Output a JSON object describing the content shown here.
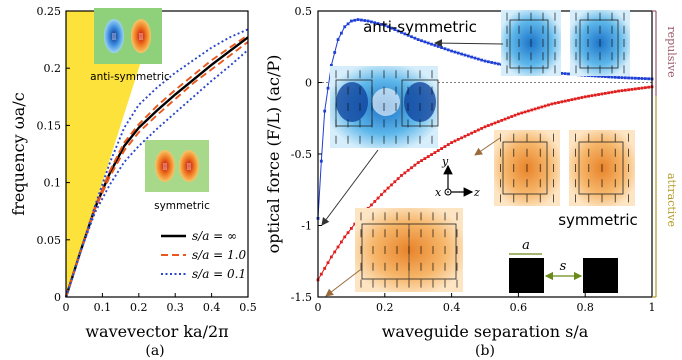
{
  "chart_data": [
    {
      "panel": "(a)",
      "type": "line",
      "xlabel": "wavevector ka/2π",
      "ylabel": "frequency ωa/c",
      "xlim": [
        0,
        0.5
      ],
      "ylim": [
        0,
        0.25
      ],
      "xticks": [
        "0",
        "0.1",
        "0.2",
        "0.3",
        "0.4",
        "0.5"
      ],
      "yticks": [
        "0",
        "0.05",
        "0.1",
        "0.15",
        "0.2",
        "0.25"
      ],
      "light_cone_color": "#fde23b",
      "legend_position": "bottom-right",
      "series": [
        {
          "name": "s/a = ∞",
          "style": "solid",
          "color": "#000000",
          "branch": "single",
          "x": [
            0.04,
            0.08,
            0.12,
            0.16,
            0.2,
            0.25,
            0.3,
            0.35,
            0.4,
            0.45,
            0.5
          ],
          "y": [
            0.04,
            0.078,
            0.108,
            0.132,
            0.148,
            0.163,
            0.177,
            0.19,
            0.203,
            0.215,
            0.227
          ]
        },
        {
          "name": "s/a = 1.0",
          "style": "dashed",
          "color": "#e8581e",
          "branch": "upper",
          "x": [
            0.04,
            0.08,
            0.12,
            0.16,
            0.2,
            0.25,
            0.3,
            0.35,
            0.4,
            0.45,
            0.5
          ],
          "y": [
            0.04,
            0.079,
            0.11,
            0.135,
            0.151,
            0.167,
            0.181,
            0.194,
            0.207,
            0.218,
            0.229
          ]
        },
        {
          "name": "s/a = 1.0",
          "style": "dashed",
          "color": "#e8581e",
          "branch": "lower",
          "x": [
            0.04,
            0.08,
            0.12,
            0.16,
            0.2,
            0.25,
            0.3,
            0.35,
            0.4,
            0.45,
            0.5
          ],
          "y": [
            0.04,
            0.077,
            0.105,
            0.128,
            0.144,
            0.159,
            0.173,
            0.187,
            0.199,
            0.211,
            0.223
          ]
        },
        {
          "name": "s/a = 0.1",
          "style": "dotted",
          "color": "#2a47c9",
          "branch": "upper",
          "x": [
            0.04,
            0.08,
            0.12,
            0.16,
            0.2,
            0.25,
            0.3,
            0.35,
            0.4,
            0.45,
            0.5
          ],
          "y": [
            0.04,
            0.08,
            0.117,
            0.148,
            0.168,
            0.183,
            0.196,
            0.207,
            0.218,
            0.227,
            0.234
          ]
        },
        {
          "name": "s/a = 0.1",
          "style": "dotted",
          "color": "#2a47c9",
          "branch": "lower",
          "x": [
            0.04,
            0.08,
            0.12,
            0.16,
            0.2,
            0.25,
            0.3,
            0.35,
            0.4,
            0.45,
            0.5
          ],
          "y": [
            0.04,
            0.074,
            0.098,
            0.118,
            0.132,
            0.147,
            0.161,
            0.175,
            0.189,
            0.202,
            0.216
          ]
        }
      ],
      "annotations": [
        "anti-symmetric",
        "symmetric"
      ]
    },
    {
      "panel": "(b)",
      "type": "scatter",
      "xlabel": "waveguide separation s/a",
      "ylabel": "optical force (F/L) (ac/P)",
      "xlim": [
        0,
        1
      ],
      "ylim": [
        -1.5,
        0.5
      ],
      "xticks": [
        "0",
        "0.2",
        "0.4",
        "0.6",
        "0.8",
        "1"
      ],
      "yticks": [
        "-1.5",
        "-1",
        "-0.5",
        "0",
        "0.5"
      ],
      "series": [
        {
          "name": "anti-symmetric",
          "color": "#1f3fd6",
          "x": [
            0,
            0.01,
            0.02,
            0.04,
            0.06,
            0.08,
            0.1,
            0.12,
            0.15,
            0.2,
            0.25,
            0.3,
            0.4,
            0.5,
            0.6,
            0.7,
            0.8,
            0.9,
            1.0
          ],
          "y": [
            -0.95,
            -0.55,
            -0.2,
            0.12,
            0.3,
            0.39,
            0.43,
            0.44,
            0.43,
            0.4,
            0.35,
            0.3,
            0.22,
            0.15,
            0.1,
            0.07,
            0.05,
            0.035,
            0.025
          ]
        },
        {
          "name": "symmetric",
          "color": "#e01e1e",
          "x": [
            0,
            0.01,
            0.02,
            0.04,
            0.06,
            0.08,
            0.1,
            0.12,
            0.15,
            0.2,
            0.25,
            0.3,
            0.4,
            0.5,
            0.6,
            0.7,
            0.8,
            0.9,
            1.0
          ],
          "y": [
            -1.38,
            -1.34,
            -1.3,
            -1.22,
            -1.15,
            -1.08,
            -1.02,
            -0.96,
            -0.88,
            -0.76,
            -0.65,
            -0.56,
            -0.42,
            -0.31,
            -0.22,
            -0.15,
            -0.1,
            -0.06,
            -0.03
          ]
        }
      ],
      "annotations": [
        "anti-symmetric",
        "symmetric",
        "repulsive",
        "attractive",
        "a",
        "s",
        "x",
        "y",
        "z"
      ],
      "repulsive_color": "#9b5a6a",
      "attractive_color": "#b59a2a"
    }
  ]
}
